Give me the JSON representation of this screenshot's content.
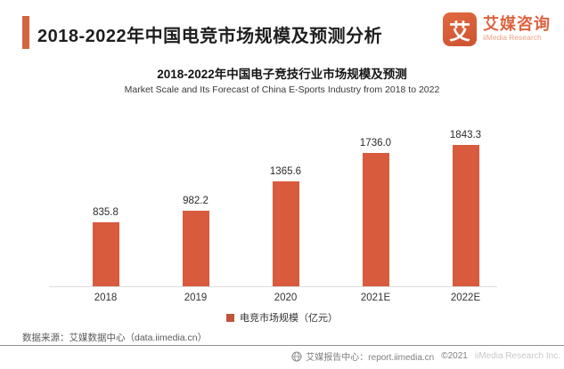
{
  "header": {
    "title": "2018-2022年中国电竞市场规模及预测分析",
    "logo": {
      "glyph": "艾",
      "name_cn": "艾媒咨询",
      "name_en": "iiMedia Research"
    }
  },
  "chart_data": {
    "type": "bar",
    "title": "2018-2022年中国电子竞技行业市场规模及预测",
    "subtitle": "Market Scale and Its Forecast of China E-Sports Industry from 2018 to 2022",
    "categories": [
      "2018",
      "2019",
      "2020",
      "2021E",
      "2022E"
    ],
    "values": [
      835.8,
      982.2,
      1365.6,
      1736.0,
      1843.3
    ],
    "value_labels": [
      "835.8",
      "982.2",
      "1365.6",
      "1736.0",
      "1843.3"
    ],
    "series_name": "电竞市场规模（亿元）",
    "legend": [
      "电竞市场规模（亿元）"
    ],
    "legend_position": "bottom",
    "ylim": [
      0,
      1900
    ],
    "grid": false,
    "bar_color": "#d75b3c",
    "legend_color": "#c15439"
  },
  "footer": {
    "source": "数据来源：艾媒数据中心（data.iimedia.cn）",
    "report_center": "艾媒报告中心：report.iimedia.cn",
    "copyright": "©2021",
    "watermark": "iiMedia Research Inc."
  },
  "colors": {
    "accent_bar": "#d4663f",
    "logo": "#dd6240",
    "bar": "#d75b3c"
  }
}
